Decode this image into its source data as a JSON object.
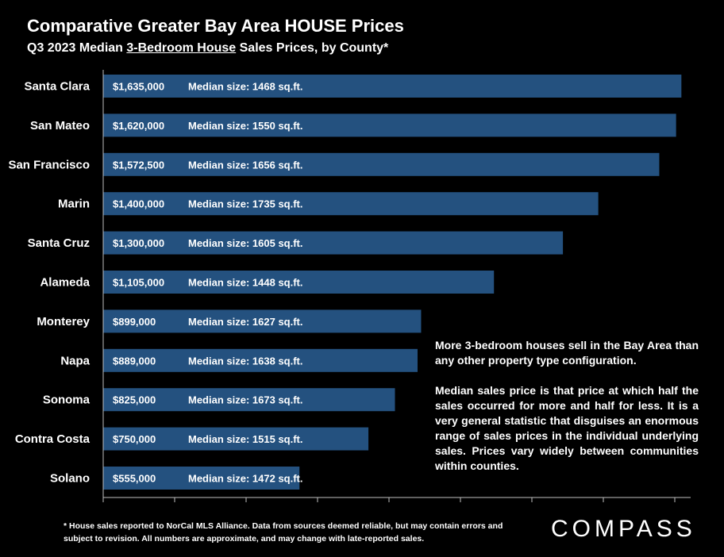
{
  "title": "Comparative Greater Bay Area HOUSE Prices",
  "subtitle": {
    "prefix": "Q3 2023 Median ",
    "underlined": "3-Bedroom House",
    "suffix": " Sales Prices, by County*"
  },
  "chart_data": {
    "type": "bar",
    "orientation": "horizontal",
    "categories": [
      "Santa Clara",
      "San Mateo",
      "San Francisco",
      "Marin",
      "Santa Cruz",
      "Alameda",
      "Monterey",
      "Napa",
      "Sonoma",
      "Contra Costa",
      "Solano"
    ],
    "values": [
      1635000,
      1620000,
      1572500,
      1400000,
      1300000,
      1105000,
      899000,
      889000,
      825000,
      750000,
      555000
    ],
    "value_labels": [
      "$1,635,000",
      "$1,620,000",
      "$1,572,500",
      "$1,400,000",
      "$1,300,000",
      "$1,105,000",
      "$899,000",
      "$889,000",
      "$825,000",
      "$750,000",
      "$555,000"
    ],
    "size_labels": [
      "Median size: 1468 sq.ft.",
      "Median size: 1550 sq.ft.",
      "Median size: 1656 sq.ft.",
      "Median size: 1735 sq.ft.",
      "Median size: 1605 sq.ft.",
      "Median size: 1448 sq.ft.",
      "Median size: 1627 sq.ft.",
      "Median size: 1638 sq.ft.",
      "Median size: 1673 sq.ft.",
      "Median size: 1515 sq.ft.",
      "Median size: 1472 sq.ft."
    ],
    "xlim": [
      0,
      1650000
    ],
    "bar_color": "#24517f",
    "grid": false
  },
  "note": [
    "More 3-bedroom houses sell in the Bay Area than any other property type configuration.",
    "Median sales price is that price at which half the sales occurred for more and half for less. It is a very general statistic that disguises an enormous range of sales prices in the individual underlying sales. Prices vary widely between communities within counties."
  ],
  "footnote": "* House sales reported to NorCal MLS Alliance. Data from sources deemed reliable, but may contain errors and subject to revision. All numbers are approximate, and may change with late-reported sales.",
  "logo": "COMPASS"
}
